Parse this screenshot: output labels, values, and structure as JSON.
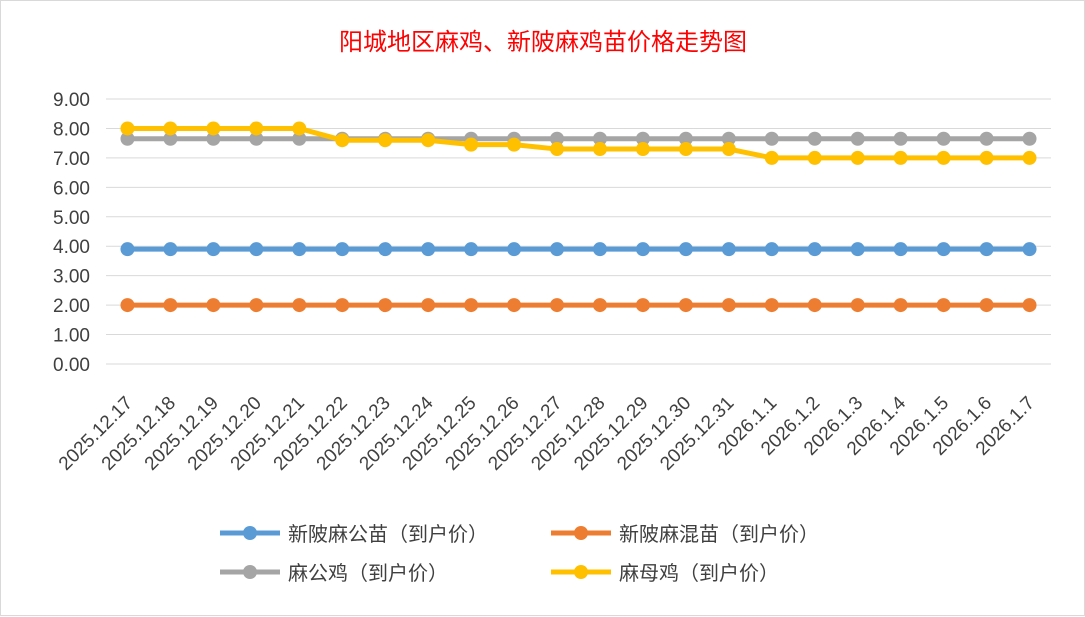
{
  "chart_data": {
    "type": "line",
    "title": "阳城地区麻鸡、新陂麻鸡苗价格走势图",
    "xlabel": "",
    "ylabel": "",
    "ylim": [
      0,
      9
    ],
    "ytick_labels": [
      "0.00",
      "1.00",
      "2.00",
      "3.00",
      "4.00",
      "5.00",
      "6.00",
      "7.00",
      "8.00",
      "9.00"
    ],
    "grid": true,
    "legend_position": "bottom",
    "categories": [
      "2025.12.17",
      "2025.12.18",
      "2025.12.19",
      "2025.12.20",
      "2025.12.21",
      "2025.12.22",
      "2025.12.23",
      "2025.12.24",
      "2025.12.25",
      "2025.12.26",
      "2025.12.27",
      "2025.12.28",
      "2025.12.29",
      "2025.12.30",
      "2025.12.31",
      "2026.1.1",
      "2026.1.2",
      "2026.1.3",
      "2026.1.4",
      "2026.1.5",
      "2026.1.6",
      "2026.1.7"
    ],
    "series": [
      {
        "name": "新陂麻公苗（到户价）",
        "color": "#5b9bd5",
        "values": [
          3.9,
          3.9,
          3.9,
          3.9,
          3.9,
          3.9,
          3.9,
          3.9,
          3.9,
          3.9,
          3.9,
          3.9,
          3.9,
          3.9,
          3.9,
          3.9,
          3.9,
          3.9,
          3.9,
          3.9,
          3.9,
          3.9
        ]
      },
      {
        "name": "新陂麻混苗（到户价）",
        "color": "#ed7d31",
        "values": [
          2.0,
          2.0,
          2.0,
          2.0,
          2.0,
          2.0,
          2.0,
          2.0,
          2.0,
          2.0,
          2.0,
          2.0,
          2.0,
          2.0,
          2.0,
          2.0,
          2.0,
          2.0,
          2.0,
          2.0,
          2.0,
          2.0
        ]
      },
      {
        "name": "麻公鸡（到户价）",
        "color": "#a5a5a5",
        "values": [
          7.65,
          7.65,
          7.65,
          7.65,
          7.65,
          7.65,
          7.65,
          7.65,
          7.65,
          7.65,
          7.65,
          7.65,
          7.65,
          7.65,
          7.65,
          7.65,
          7.65,
          7.65,
          7.65,
          7.65,
          7.65,
          7.65
        ]
      },
      {
        "name": "麻母鸡（到户价）",
        "color": "#ffc000",
        "values": [
          8.0,
          8.0,
          8.0,
          8.0,
          8.0,
          7.6,
          7.6,
          7.6,
          7.45,
          7.45,
          7.3,
          7.3,
          7.3,
          7.3,
          7.3,
          7.0,
          7.0,
          7.0,
          7.0,
          7.0,
          7.0,
          7.0
        ]
      }
    ]
  }
}
